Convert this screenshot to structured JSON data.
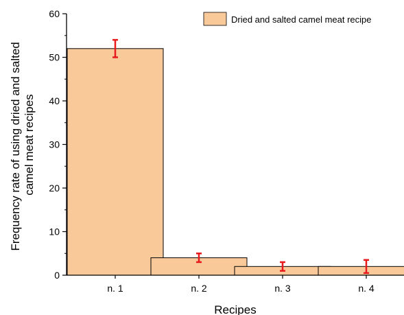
{
  "chart_data": {
    "type": "bar",
    "categories": [
      "n. 1",
      "n. 2",
      "n. 3",
      "n. 4"
    ],
    "series": [
      {
        "name": "Dried and salted camel meat recipe",
        "values": [
          52,
          4,
          2,
          2
        ],
        "error": [
          2,
          1,
          1,
          1.5
        ]
      }
    ],
    "xlabel": "Recipes",
    "ylabel": [
      "Frequency rate of using dried and salted",
      "camel meat recipes"
    ],
    "ylim": [
      0,
      60
    ],
    "yticks": [
      0,
      10,
      20,
      30,
      40,
      50,
      60
    ],
    "grid": false,
    "legend_position": "top-right",
    "colors": {
      "bar_fill": "#F9C99A",
      "bar_stroke": "#000000",
      "error_bar": "#E8191B"
    }
  }
}
